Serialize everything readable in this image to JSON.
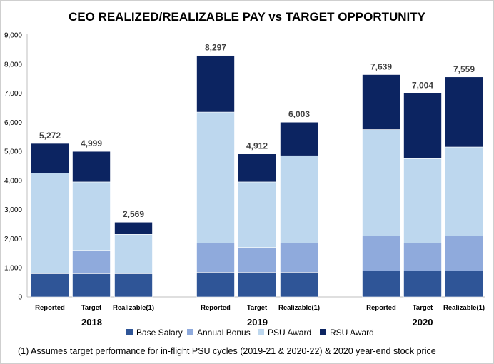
{
  "chart_data": {
    "type": "bar",
    "stacked": true,
    "title": "CEO REALIZED/REALIZABLE PAY vs TARGET OPPORTUNITY",
    "ylim": [
      0,
      9000
    ],
    "yticks": [
      "0",
      "1,000",
      "2,000",
      "3,000",
      "4,000",
      "5,000",
      "6,000",
      "7,000",
      "8,000",
      "9,000"
    ],
    "grid": false,
    "legend_position": "bottom",
    "groups": [
      "2018",
      "2019",
      "2020"
    ],
    "categories": [
      "Reported",
      "Target",
      "Realizable(1)",
      "Reported",
      "Target",
      "Realizable(1)",
      "Reported",
      "Target",
      "Realizable(1)"
    ],
    "category_group": [
      0,
      0,
      0,
      1,
      1,
      1,
      2,
      2,
      2
    ],
    "series": [
      {
        "name": "Base Salary",
        "color": "#2f5597",
        "values": [
          800,
          800,
          800,
          850,
          850,
          850,
          900,
          900,
          900
        ]
      },
      {
        "name": "Annual Bonus",
        "color": "#8faadc",
        "values": [
          0,
          800,
          0,
          1000,
          850,
          1000,
          1200,
          950,
          1200
        ]
      },
      {
        "name": "PSU Award",
        "color": "#bdd7ee",
        "values": [
          3450,
          2350,
          1350,
          4500,
          2250,
          3000,
          3650,
          2900,
          3050
        ]
      },
      {
        "name": "RSU Award",
        "color": "#0c2461",
        "values": [
          1022,
          1049,
          419,
          1947,
          962,
          1153,
          1889,
          2254,
          2409
        ]
      }
    ],
    "totals": [
      "5,272",
      "4,999",
      "2,569",
      "8,297",
      "4,912",
      "6,003",
      "7,639",
      "7,004",
      "7,559"
    ]
  },
  "footnote": "(1) Assumes target performance for in-flight PSU cycles (2019-21 & 2020-22) & 2020 year-end stock price"
}
